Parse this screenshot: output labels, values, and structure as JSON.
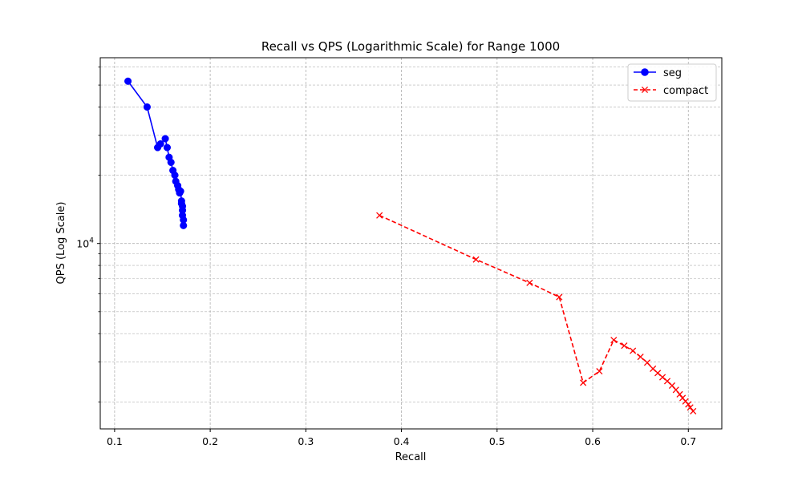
{
  "chart_data": {
    "type": "line",
    "title": "Recall vs QPS (Logarithmic Scale) for Range 1000",
    "xlabel": "Recall",
    "ylabel": "QPS (Log Scale)",
    "xlim": [
      0.085,
      0.735
    ],
    "ylim": [
      1520,
      66000
    ],
    "yscale": "log",
    "grid": true,
    "legend_position": "top-right",
    "xticks": [
      {
        "value": 0.1,
        "label": "0.1"
      },
      {
        "value": 0.2,
        "label": "0.2"
      },
      {
        "value": 0.3,
        "label": "0.3"
      },
      {
        "value": 0.4,
        "label": "0.4"
      },
      {
        "value": 0.5,
        "label": "0.5"
      },
      {
        "value": 0.6,
        "label": "0.6"
      },
      {
        "value": 0.7,
        "label": "0.7"
      }
    ],
    "yticks_major": [
      {
        "value": 10000,
        "base": "10",
        "exp": "4"
      }
    ],
    "yticks_minor": [
      2000,
      3000,
      4000,
      5000,
      6000,
      7000,
      8000,
      9000,
      20000,
      30000,
      40000,
      50000,
      60000
    ],
    "series": [
      {
        "name": "seg",
        "color": "#0000ff",
        "marker": "circle",
        "linestyle": "solid",
        "x": [
          0.114,
          0.134,
          0.145,
          0.148,
          0.153,
          0.155,
          0.157,
          0.159,
          0.161,
          0.163,
          0.164,
          0.166,
          0.167,
          0.168,
          0.169,
          0.17,
          0.17,
          0.171,
          0.171,
          0.171,
          0.172,
          0.172
        ],
        "y": [
          52000,
          40000,
          26500,
          27500,
          29000,
          26500,
          24000,
          22800,
          21000,
          20000,
          18800,
          18000,
          17300,
          16700,
          17000,
          15400,
          15000,
          14600,
          14000,
          13300,
          12700,
          12000
        ]
      },
      {
        "name": "compact",
        "color": "#ff0000",
        "marker": "x",
        "linestyle": "dashed",
        "x": [
          0.377,
          0.478,
          0.534,
          0.565,
          0.59,
          0.607,
          0.622,
          0.633,
          0.642,
          0.65,
          0.657,
          0.663,
          0.668,
          0.673,
          0.678,
          0.683,
          0.687,
          0.691,
          0.694,
          0.697,
          0.7,
          0.702,
          0.705
        ],
        "y": [
          13300,
          8500,
          6700,
          5800,
          2430,
          2730,
          3750,
          3540,
          3360,
          3160,
          2980,
          2800,
          2680,
          2570,
          2470,
          2360,
          2260,
          2160,
          2080,
          2010,
          1950,
          1890,
          1820
        ]
      }
    ]
  }
}
